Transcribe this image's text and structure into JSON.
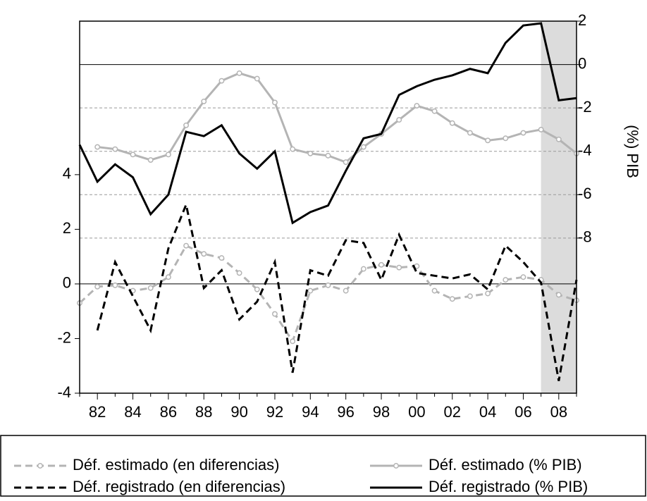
{
  "chart_data": {
    "type": "line",
    "x": [
      1981,
      1982,
      1983,
      1984,
      1985,
      1986,
      1987,
      1988,
      1989,
      1990,
      1991,
      1992,
      1993,
      1994,
      1995,
      1996,
      1997,
      1998,
      1999,
      2000,
      2001,
      2002,
      2003,
      2004,
      2005,
      2006,
      2007,
      2008,
      2009
    ],
    "series": [
      {
        "name": "Déf. estimado (en diferencias)",
        "color": "#b4b4b4",
        "dash": true,
        "marker": "circle",
        "axis": "y",
        "values": [
          -0.7,
          -0.1,
          -0.05,
          -0.25,
          -0.15,
          0.25,
          1.4,
          1.1,
          0.95,
          0.4,
          -0.2,
          -1.1,
          -2.1,
          -0.25,
          -0.05,
          -0.25,
          0.55,
          0.7,
          0.6,
          0.65,
          -0.25,
          -0.55,
          -0.45,
          -0.35,
          0.15,
          0.25,
          0.15,
          -0.4,
          -0.6
        ]
      },
      {
        "name": "Déf. estimado (% PIB)",
        "color": "#b4b4b4",
        "dash": false,
        "marker": "circle",
        "axis": "y2",
        "values": [
          null,
          -3.8,
          -3.9,
          -4.15,
          -4.4,
          -4.15,
          -2.8,
          -1.7,
          -0.75,
          -0.4,
          -0.65,
          -1.75,
          -3.9,
          -4.1,
          -4.2,
          -4.5,
          -3.8,
          -3.2,
          -2.55,
          -1.9,
          -2.15,
          -2.7,
          -3.15,
          -3.5,
          -3.4,
          -3.15,
          -3.0,
          -3.45,
          -4.1
        ]
      },
      {
        "name": "Déf. registrado (en diferencias)",
        "color": "#000000",
        "dash": true,
        "marker": "none",
        "axis": "y",
        "values": [
          null,
          -1.7,
          0.8,
          -0.45,
          -1.7,
          1.3,
          2.9,
          -0.15,
          0.5,
          -1.3,
          -0.65,
          0.8,
          -3.25,
          0.5,
          0.3,
          1.6,
          1.5,
          0.15,
          1.8,
          0.4,
          0.3,
          0.2,
          0.35,
          -0.2,
          1.4,
          0.8,
          0.05,
          -3.55,
          0.15
        ]
      },
      {
        "name": "Déf. registrado (% PIB)",
        "color": "#000000",
        "dash": false,
        "marker": "none",
        "axis": "y2",
        "values": [
          -3.7,
          -5.4,
          -4.6,
          -5.2,
          -6.9,
          -6.0,
          -3.1,
          -3.3,
          -2.8,
          -4.1,
          -4.8,
          -4.0,
          -7.3,
          -6.8,
          -6.5,
          -4.9,
          -3.4,
          -3.2,
          -1.4,
          -1.0,
          -0.7,
          -0.5,
          -0.2,
          -0.4,
          1.0,
          1.8,
          1.9,
          -1.65,
          -1.55
        ]
      }
    ],
    "xlim": [
      1981,
      2009
    ],
    "xticks": [
      {
        "value": 1982,
        "label": "82"
      },
      {
        "value": 1984,
        "label": "84"
      },
      {
        "value": 1986,
        "label": "86"
      },
      {
        "value": 1988,
        "label": "88"
      },
      {
        "value": 1990,
        "label": "90"
      },
      {
        "value": 1992,
        "label": "92"
      },
      {
        "value": 1994,
        "label": "94"
      },
      {
        "value": 1996,
        "label": "96"
      },
      {
        "value": 1998,
        "label": "98"
      },
      {
        "value": 2000,
        "label": "00"
      },
      {
        "value": 2002,
        "label": "02"
      },
      {
        "value": 2004,
        "label": "04"
      },
      {
        "value": 2006,
        "label": "06"
      },
      {
        "value": 2008,
        "label": "08"
      }
    ],
    "ylim": [
      -4,
      9.62
    ],
    "yticks": [
      -4,
      -2,
      0,
      2,
      4
    ],
    "y2lim": [
      -15.15,
      2
    ],
    "y2ticks": [
      -8,
      -6,
      -4,
      -2,
      0,
      2
    ],
    "y2label": "(%) PIB",
    "shade": [
      2007,
      2009
    ],
    "grid": true
  }
}
